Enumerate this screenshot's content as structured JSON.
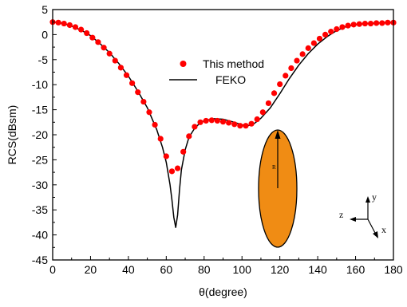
{
  "chart_data": {
    "type": "line",
    "xlabel": "θ(degree)",
    "ylabel": "RCS(dBsm)",
    "xlim": [
      0,
      180
    ],
    "ylim": [
      -45,
      5
    ],
    "xticks": [
      "0",
      "20",
      "40",
      "60",
      "80",
      "100",
      "120",
      "140",
      "160",
      "180"
    ],
    "yticks": [
      "5",
      "0",
      "-5",
      "-10",
      "-15",
      "-20",
      "-25",
      "-30",
      "-35",
      "-40",
      "-45"
    ],
    "grid": false,
    "legend_position": "upper-center",
    "series": [
      {
        "name": "This method",
        "style": "markers",
        "color": "#ff0000",
        "x": [
          0,
          3,
          6,
          9,
          12,
          15,
          18,
          21,
          24,
          27,
          30,
          33,
          36,
          39,
          42,
          45,
          48,
          51,
          54,
          57,
          60,
          63,
          66,
          69,
          72,
          75,
          78,
          81,
          84,
          87,
          90,
          93,
          96,
          99,
          102,
          105,
          108,
          111,
          114,
          117,
          120,
          123,
          126,
          129,
          132,
          135,
          138,
          141,
          144,
          147,
          150,
          153,
          156,
          159,
          162,
          165,
          168,
          171,
          174,
          177,
          180
        ],
        "y": [
          2.5,
          2.4,
          2.2,
          1.9,
          1.5,
          1.0,
          0.3,
          -0.6,
          -1.5,
          -2.6,
          -3.8,
          -5.2,
          -6.6,
          -8.1,
          -9.7,
          -11.5,
          -13.4,
          -15.5,
          -18.0,
          -20.8,
          -24.3,
          -27.3,
          -26.7,
          -23.4,
          -20.3,
          -18.4,
          -17.5,
          -17.2,
          -17.1,
          -17.2,
          -17.4,
          -17.6,
          -17.9,
          -18.2,
          -18.2,
          -17.8,
          -16.9,
          -15.5,
          -13.7,
          -11.7,
          -9.9,
          -8.2,
          -6.7,
          -5.2,
          -3.9,
          -2.7,
          -1.7,
          -0.8,
          0.0,
          0.6,
          1.1,
          1.5,
          1.8,
          2.0,
          2.1,
          2.2,
          2.2,
          2.3,
          2.3,
          2.4,
          2.4
        ]
      },
      {
        "name": "FEKO",
        "style": "line",
        "color": "#000000",
        "x": [
          0,
          5,
          10,
          15,
          20,
          25,
          30,
          35,
          40,
          45,
          50,
          55,
          58,
          60,
          62,
          63,
          64,
          65,
          66,
          67,
          68,
          70,
          72,
          75,
          78,
          80,
          85,
          90,
          95,
          100,
          103,
          106,
          110,
          115,
          120,
          125,
          130,
          135,
          140,
          145,
          150,
          155,
          160,
          165,
          170,
          175,
          180
        ],
        "y": [
          2.5,
          2.3,
          1.7,
          0.9,
          -0.2,
          -1.8,
          -3.6,
          -5.8,
          -8.3,
          -11.3,
          -14.6,
          -19.0,
          -22.5,
          -25.5,
          -30.0,
          -33.0,
          -36.5,
          -38.5,
          -36.0,
          -31.0,
          -27.0,
          -23.0,
          -20.5,
          -18.7,
          -17.6,
          -17.2,
          -16.8,
          -16.9,
          -17.4,
          -18.0,
          -18.2,
          -17.9,
          -16.7,
          -14.6,
          -11.8,
          -8.8,
          -6.1,
          -3.8,
          -1.9,
          -0.4,
          0.8,
          1.6,
          2.0,
          2.2,
          2.3,
          2.4,
          2.5
        ]
      }
    ]
  },
  "inset": {
    "radius_label": "R",
    "axis_labels": {
      "y": "y",
      "z": "z",
      "x": "x"
    },
    "colors": {
      "flat_face": "#f08c14",
      "curved_surface": "#18a040"
    }
  }
}
